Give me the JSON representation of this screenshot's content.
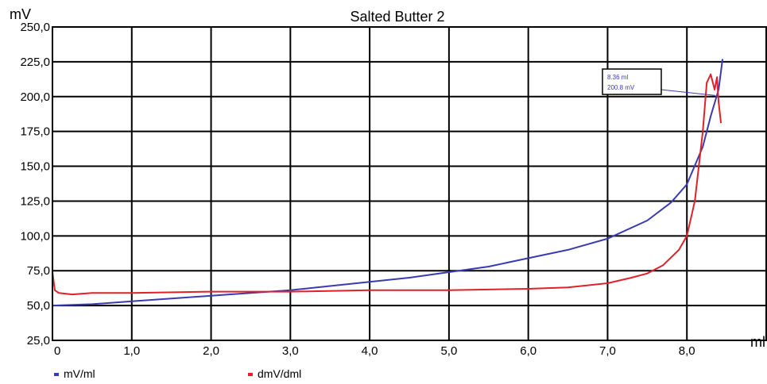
{
  "chart_data": {
    "type": "line",
    "title": "Salted Butter 2",
    "ylabel": "mV",
    "xlabel": "ml",
    "xlim": [
      0,
      9.0
    ],
    "ylim": [
      25,
      250
    ],
    "x_ticks": [
      "0",
      "1,0",
      "2,0",
      "3,0",
      "4,0",
      "5,0",
      "6,0",
      "7,0",
      "8,0"
    ],
    "x_tick_values": [
      0,
      1,
      2,
      3,
      4,
      5,
      6,
      7,
      8
    ],
    "y_ticks": [
      "25,0",
      "50,0",
      "75,0",
      "100,0",
      "125,0",
      "150,0",
      "175,0",
      "200,0",
      "225,0",
      "250,0"
    ],
    "y_tick_values": [
      25,
      50,
      75,
      100,
      125,
      150,
      175,
      200,
      225,
      250
    ],
    "grid": true,
    "legend_position": "bottom-left",
    "series": [
      {
        "name": "mV/ml",
        "color": "#3b3bb0",
        "x": [
          0,
          0.5,
          1.0,
          1.5,
          2.0,
          2.5,
          3.0,
          3.5,
          4.0,
          4.5,
          5.0,
          5.5,
          6.0,
          6.5,
          7.0,
          7.5,
          7.8,
          8.0,
          8.2,
          8.3,
          8.4,
          8.45
        ],
        "y": [
          50,
          51,
          53,
          55,
          57,
          59,
          61,
          64,
          67,
          70,
          74,
          78,
          84,
          90,
          98,
          111,
          124,
          137,
          164,
          186,
          205,
          227
        ]
      },
      {
        "name": "dmV/dml",
        "color": "#e0202a",
        "x": [
          0,
          0.03,
          0.08,
          0.25,
          0.5,
          1.0,
          2.0,
          3.0,
          4.0,
          5.0,
          6.0,
          6.5,
          7.0,
          7.3,
          7.5,
          7.7,
          7.9,
          8.0,
          8.1,
          8.2,
          8.25,
          8.3,
          8.35,
          8.38,
          8.4,
          8.43
        ],
        "y": [
          74,
          61,
          59,
          58,
          59,
          59,
          60,
          60,
          61,
          61,
          62,
          63,
          66,
          70,
          73,
          79,
          90,
          100,
          125,
          175,
          210,
          216,
          205,
          214,
          196,
          181
        ]
      }
    ],
    "annotation": {
      "line1": "8.36 ml",
      "line2": "200.8 mV",
      "x": 8.36,
      "y": 200.8
    }
  }
}
